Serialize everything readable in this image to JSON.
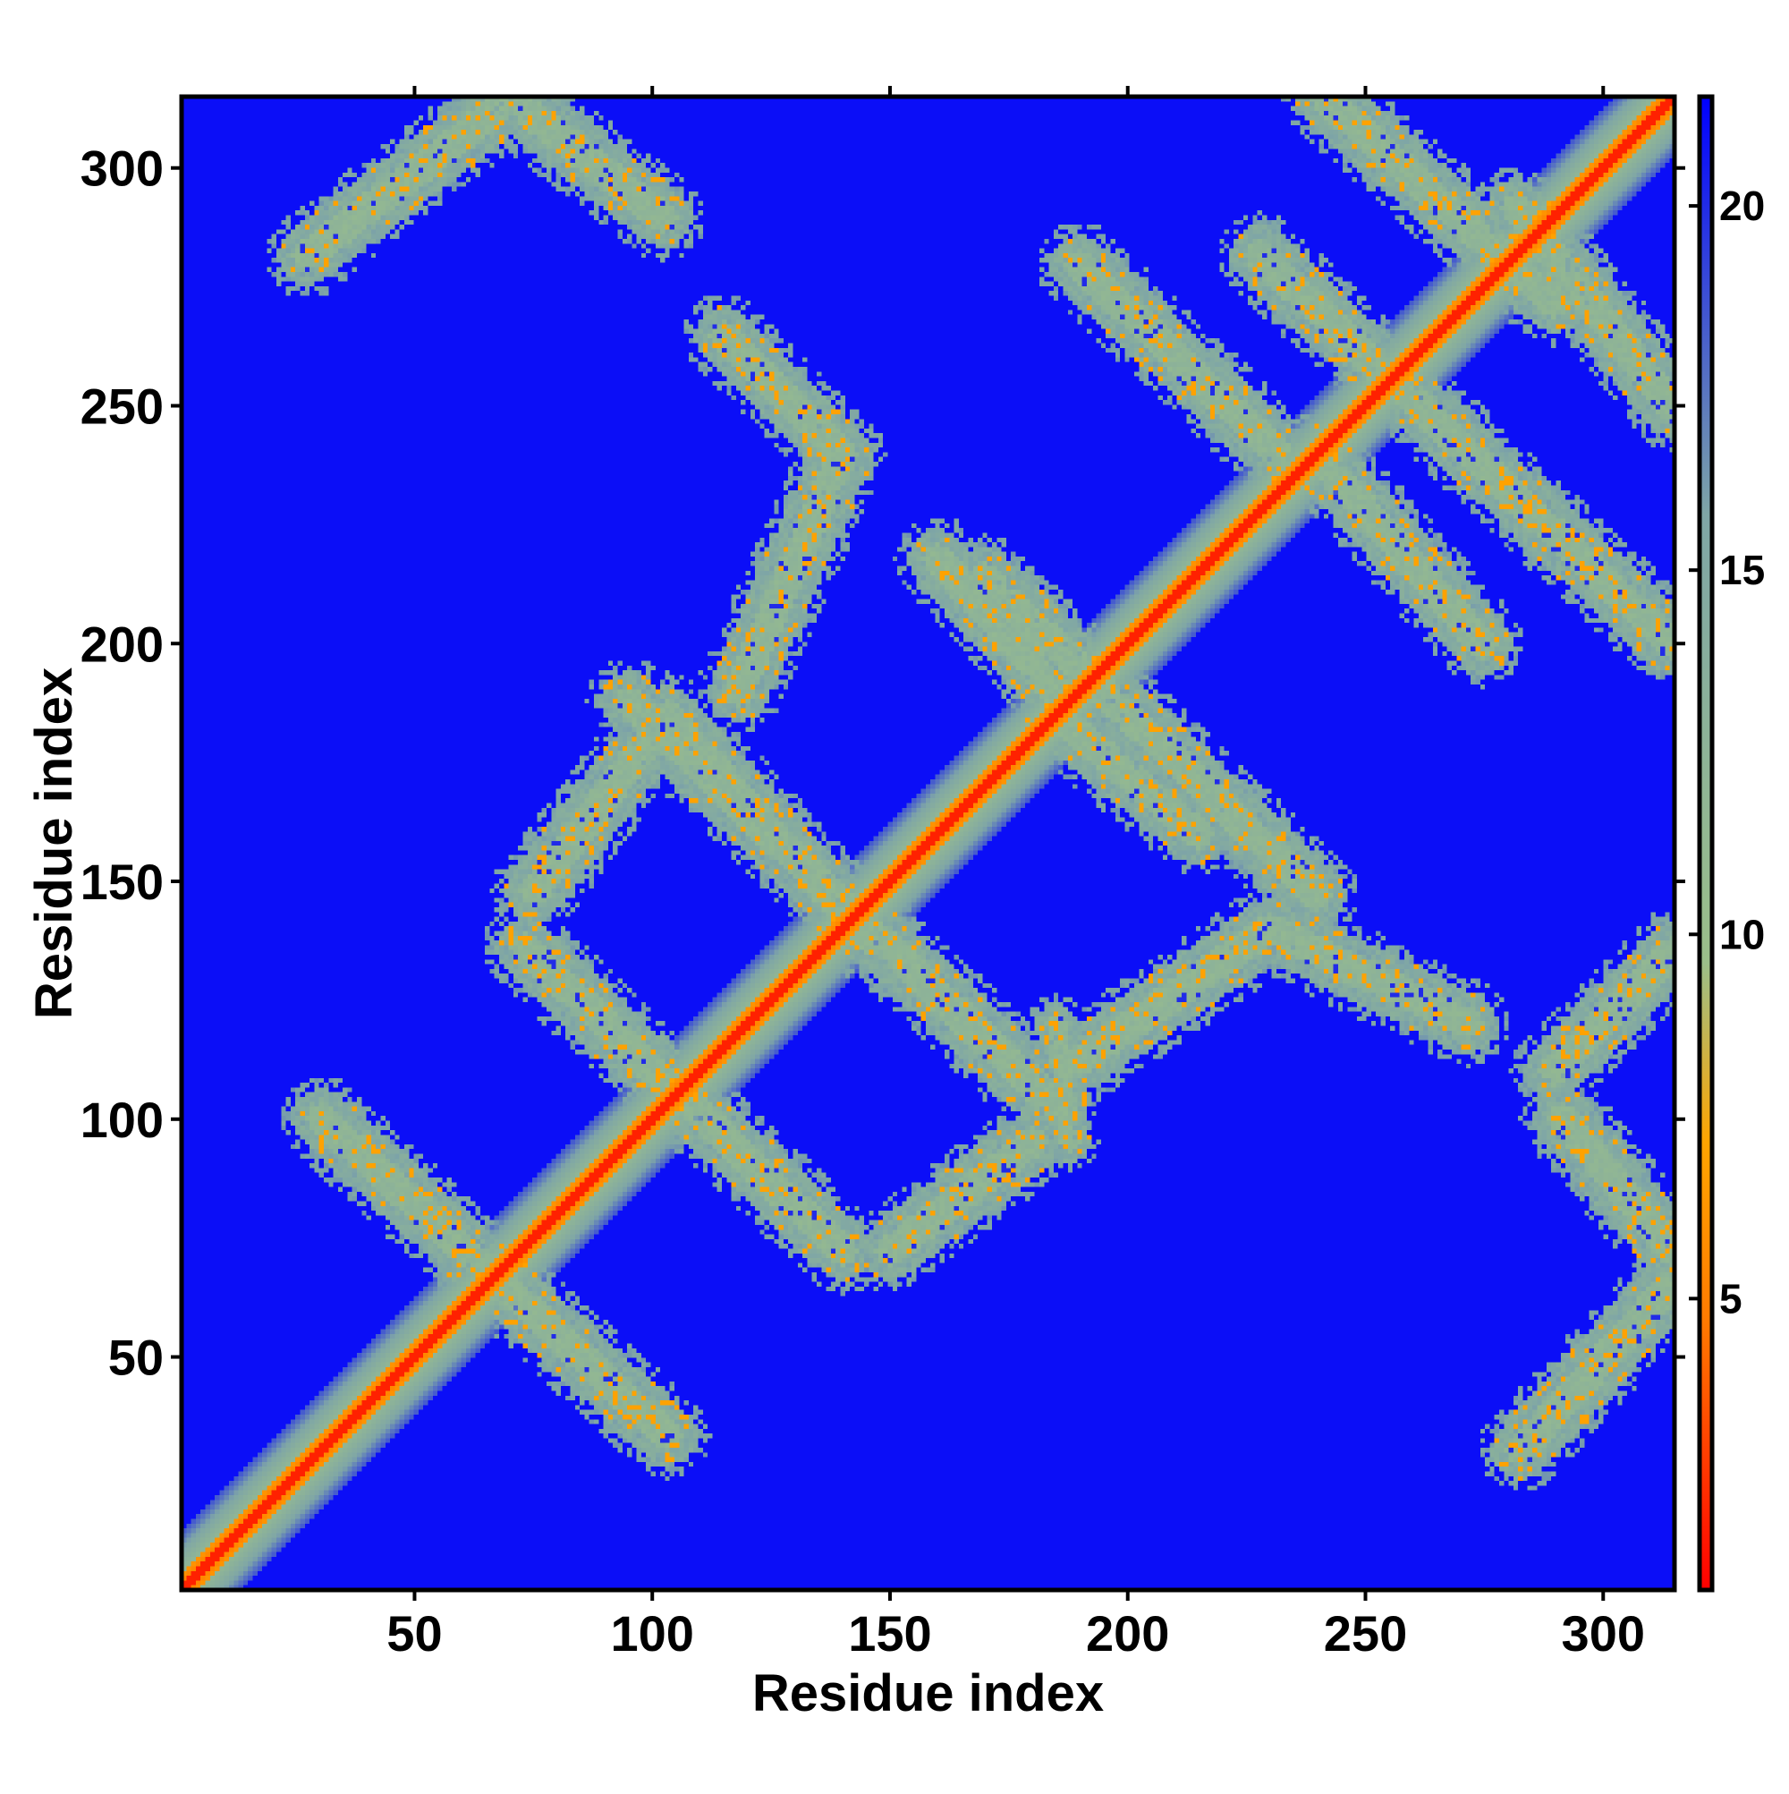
{
  "chart_data": {
    "type": "heatmap",
    "title": "",
    "xlabel": "Residue index",
    "ylabel": "Residue index",
    "xlim": [
      1,
      315
    ],
    "ylim": [
      1,
      315
    ],
    "x_ticks": [
      50,
      100,
      150,
      200,
      250,
      300
    ],
    "y_ticks": [
      50,
      100,
      150,
      200,
      250,
      300
    ],
    "colorbar": {
      "range": [
        1,
        21.5
      ],
      "ticks": [
        5,
        10,
        15,
        20
      ],
      "colors": [
        "#ff0000",
        "#ff7a00",
        "#ffa500",
        "#9bbf8a",
        "#7fa6a6",
        "#0000ff"
      ]
    },
    "background_value": 21,
    "features": [
      {
        "kind": "diagonal",
        "start": [
          1,
          1
        ],
        "end": [
          315,
          315
        ],
        "width": 9
      },
      {
        "kind": "band",
        "start": [
          30,
          100
        ],
        "end": [
          103,
          33
        ],
        "width": 9
      },
      {
        "kind": "band",
        "start": [
          73,
          136
        ],
        "end": [
          140,
          72
        ],
        "width": 9
      },
      {
        "kind": "band",
        "start": [
          95,
          188
        ],
        "end": [
          183,
          104
        ],
        "width": 9
      },
      {
        "kind": "band",
        "start": [
          170,
          214
        ],
        "end": [
          240,
          147
        ],
        "width": 9
      },
      {
        "kind": "band",
        "start": [
          228,
          282
        ],
        "end": [
          315,
          200
        ],
        "width": 9
      },
      {
        "kind": "band",
        "start": [
          27,
          282
        ],
        "end": [
          70,
          315
        ],
        "width": 9
      },
      {
        "kind": "band",
        "start": [
          74,
          312
        ],
        "end": [
          102,
          290
        ],
        "width": 9
      },
      {
        "kind": "band",
        "start": [
          115,
          265
        ],
        "end": [
          140,
          240
        ],
        "width": 9
      },
      {
        "kind": "band",
        "start": [
          140,
          240
        ],
        "end": [
          118,
          190
        ],
        "width": 9
      },
      {
        "kind": "band",
        "start": [
          75,
          148
        ],
        "end": [
          103,
          185
        ],
        "width": 9
      },
      {
        "kind": "band",
        "start": [
          103,
          185
        ],
        "end": [
          145,
          138
        ],
        "width": 9
      },
      {
        "kind": "band",
        "start": [
          140,
          145
        ],
        "end": [
          185,
          103
        ],
        "width": 9
      },
      {
        "kind": "band",
        "start": [
          150,
          72
        ],
        "end": [
          180,
          95
        ],
        "width": 9
      },
      {
        "kind": "band",
        "start": [
          160,
          218
        ],
        "end": [
          185,
          190
        ],
        "width": 9
      },
      {
        "kind": "band",
        "start": [
          185,
          185
        ],
        "end": [
          215,
          160
        ],
        "width": 9
      },
      {
        "kind": "band",
        "start": [
          190,
          280
        ],
        "end": [
          232,
          240
        ],
        "width": 9
      },
      {
        "kind": "band",
        "start": [
          240,
          240
        ],
        "end": [
          275,
          200
        ],
        "width": 9
      },
      {
        "kind": "band",
        "start": [
          190,
          112
        ],
        "end": [
          230,
          140
        ],
        "width": 9
      },
      {
        "kind": "band",
        "start": [
          230,
          140
        ],
        "end": [
          272,
          120
        ],
        "width": 9
      },
      {
        "kind": "band",
        "start": [
          242,
          315
        ],
        "end": [
          290,
          272
        ],
        "width": 9
      },
      {
        "kind": "band",
        "start": [
          282,
          292
        ],
        "end": [
          315,
          250
        ],
        "width": 9
      },
      {
        "kind": "band",
        "start": [
          292,
          100
        ],
        "end": [
          315,
          72
        ],
        "width": 9
      },
      {
        "kind": "band",
        "start": [
          283,
          30
        ],
        "end": [
          315,
          65
        ],
        "width": 9
      },
      {
        "kind": "band",
        "start": [
          290,
          110
        ],
        "end": [
          315,
          135
        ],
        "width": 9
      },
      {
        "kind": "band",
        "start": [
          185,
          120
        ],
        "end": [
          188,
          95
        ],
        "width": 6
      }
    ]
  }
}
